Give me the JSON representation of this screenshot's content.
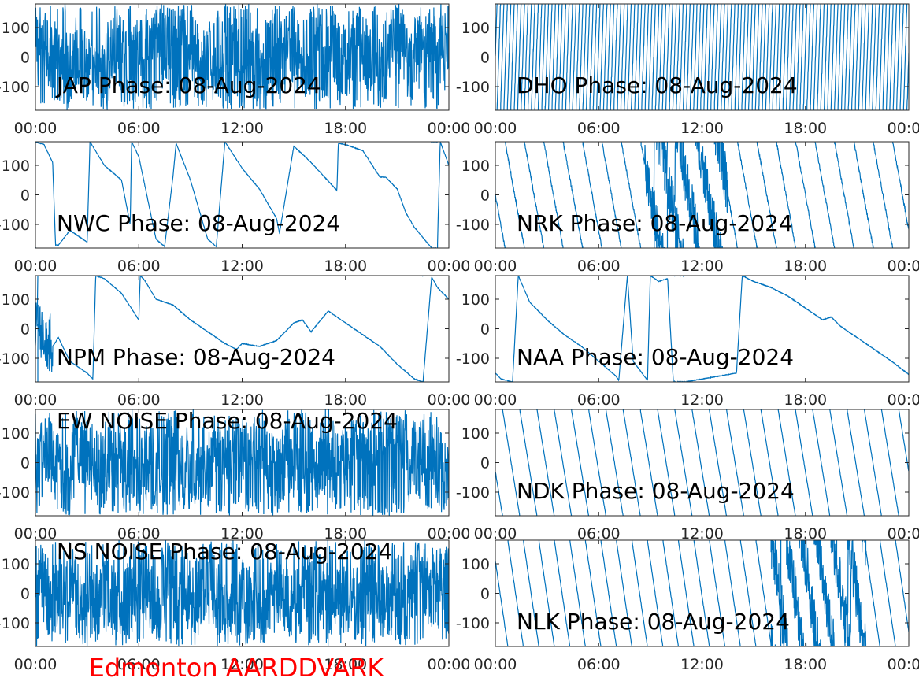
{
  "figure": {
    "footer_label": "Edmonton AARDDVARK",
    "footer_color": "#ff0000",
    "line_color": "#0072bd",
    "axes_color": "#262626",
    "background": "#ffffff"
  },
  "chart_data": [
    {
      "type": "line",
      "station": "JAP",
      "title": "JAP Phase: 08-Aug-2024",
      "xlabel": "",
      "ylabel": "",
      "xlim": [
        "00:00",
        "24:00"
      ],
      "x_ticks": [
        "00:00",
        "06:00",
        "12:00",
        "18:00",
        "00:00"
      ],
      "ylim": [
        -180,
        180
      ],
      "y_ticks": [
        100,
        0,
        -100
      ],
      "grid": false,
      "pattern": "noise",
      "trend_deg_per_hour": 0,
      "series": [
        {
          "x": [
            "00:00",
            "04:00",
            "08:00",
            "12:00",
            "16:00",
            "20:00",
            "24:00"
          ],
          "values": [
            20,
            -60,
            110,
            -140,
            60,
            -20,
            90
          ]
        }
      ]
    },
    {
      "type": "line",
      "station": "DHO",
      "title": "DHO Phase: 08-Aug-2024",
      "xlabel": "",
      "ylabel": "",
      "xlim": [
        "00:00",
        "24:00"
      ],
      "x_ticks": [
        "00:00",
        "06:00",
        "12:00",
        "18:00",
        "00:00"
      ],
      "ylim": [
        -180,
        180
      ],
      "y_ticks": [
        100,
        0,
        -100
      ],
      "grid": false,
      "pattern": "fast_sawtooth",
      "wraps_per_hour": 5,
      "series": [
        {
          "x": [
            "00:00",
            "06:00",
            "12:00",
            "18:00",
            "24:00"
          ],
          "values": [
            0,
            40,
            -20,
            30,
            10
          ]
        }
      ]
    },
    {
      "type": "line",
      "station": "NWC",
      "title": "NWC Phase: 08-Aug-2024",
      "xlabel": "",
      "ylabel": "",
      "xlim": [
        "00:00",
        "24:00"
      ],
      "x_ticks": [
        "00:00",
        "06:00",
        "12:00",
        "18:00",
        "00:00"
      ],
      "ylim": [
        -180,
        180
      ],
      "y_ticks": [
        100,
        0,
        -100
      ],
      "grid": false,
      "pattern": "wrapped",
      "trend_deg_per_hour": 0,
      "series": [
        {
          "x": [
            "00:00",
            "00:30",
            "01:00",
            "01:10",
            "01:20",
            "02:00",
            "03:00",
            "03:10",
            "04:00",
            "05:00",
            "05:30",
            "05:35",
            "06:00",
            "07:00",
            "07:30",
            "08:00",
            "08:10",
            "09:00",
            "10:00",
            "10:30",
            "11:00",
            "12:00",
            "13:00",
            "14:00",
            "14:10",
            "15:00",
            "16:00",
            "17:30",
            "17:35",
            "18:00",
            "19:00",
            "20:00",
            "20:20",
            "21:00",
            "21:30",
            "22:00",
            "23:00",
            "23:20",
            "23:30",
            "24:00"
          ],
          "values": [
            180,
            170,
            110,
            -170,
            -170,
            -120,
            -160,
            180,
            100,
            50,
            -100,
            180,
            130,
            -150,
            -175,
            70,
            175,
            50,
            -150,
            -175,
            180,
            90,
            20,
            -80,
            -130,
            165,
            110,
            15,
            175,
            170,
            150,
            60,
            60,
            20,
            -60,
            -110,
            -180,
            -180,
            180,
            100
          ]
        }
      ]
    },
    {
      "type": "line",
      "station": "NRK",
      "title": "NRK Phase: 08-Aug-2024",
      "xlabel": "",
      "ylabel": "",
      "xlim": [
        "00:00",
        "24:00"
      ],
      "x_ticks": [
        "00:00",
        "06:00",
        "12:00",
        "18:00",
        "00:00"
      ],
      "ylim": [
        -180,
        180
      ],
      "y_ticks": [
        100,
        0,
        -100
      ],
      "grid": false,
      "pattern": "wrapped",
      "trend_deg_per_hour": -320,
      "noise_deg": 12,
      "noisy_interval": [
        "08:40",
        "13:30"
      ],
      "series": [
        {
          "x": [
            "00:00",
            "24:00"
          ],
          "values": [
            0,
            0
          ]
        }
      ]
    },
    {
      "type": "line",
      "station": "NPM",
      "title": "NPM Phase: 08-Aug-2024",
      "xlabel": "",
      "ylabel": "",
      "xlim": [
        "00:00",
        "24:00"
      ],
      "x_ticks": [
        "00:00",
        "06:00",
        "12:00",
        "18:00",
        "00:00"
      ],
      "ylim": [
        -180,
        180
      ],
      "y_ticks": [
        100,
        0,
        -100
      ],
      "grid": false,
      "pattern": "wrapped",
      "trend_deg_per_hour": 0,
      "noisy_interval": [
        "00:00",
        "01:00"
      ],
      "series": [
        {
          "x": [
            "00:00",
            "01:00",
            "01:20",
            "02:00",
            "03:00",
            "03:20",
            "03:30",
            "04:00",
            "05:00",
            "06:00",
            "06:05",
            "06:20",
            "07:00",
            "08:00",
            "09:00",
            "10:00",
            "11:00",
            "11:40",
            "12:00",
            "13:00",
            "14:00",
            "15:00",
            "15:30",
            "16:00",
            "17:00",
            "18:00",
            "19:00",
            "20:00",
            "21:00",
            "22:00",
            "22:30",
            "23:00",
            "23:20",
            "24:00"
          ],
          "values": [
            20,
            -60,
            -30,
            -110,
            -150,
            -170,
            180,
            170,
            120,
            30,
            180,
            165,
            100,
            80,
            30,
            -10,
            -50,
            -70,
            -50,
            -60,
            -40,
            20,
            30,
            -10,
            60,
            20,
            -20,
            -60,
            -120,
            -170,
            -180,
            175,
            140,
            100
          ]
        }
      ]
    },
    {
      "type": "line",
      "station": "NAA",
      "title": "NAA Phase: 08-Aug-2024",
      "xlabel": "",
      "ylabel": "",
      "xlim": [
        "00:00",
        "24:00"
      ],
      "x_ticks": [
        "00:00",
        "06:00",
        "12:00",
        "18:00",
        "00:00"
      ],
      "ylim": [
        -180,
        180
      ],
      "y_ticks": [
        100,
        0,
        -100
      ],
      "grid": false,
      "pattern": "wrapped",
      "trend_deg_per_hour": 0,
      "series": [
        {
          "x": [
            "00:00",
            "00:20",
            "01:00",
            "01:20",
            "02:00",
            "03:00",
            "04:00",
            "05:00",
            "06:00",
            "07:00",
            "07:10",
            "07:40",
            "08:00",
            "08:50",
            "09:00",
            "09:30",
            "10:00",
            "10:20",
            "11:00",
            "12:00",
            "13:00",
            "14:00",
            "14:20",
            "15:00",
            "16:00",
            "17:00",
            "18:00",
            "19:00",
            "19:30",
            "20:00",
            "21:00",
            "22:00",
            "23:00",
            "24:00"
          ],
          "values": [
            -150,
            -170,
            -180,
            180,
            90,
            30,
            -20,
            -60,
            -110,
            -160,
            -175,
            180,
            -110,
            -175,
            180,
            160,
            170,
            -180,
            -180,
            -170,
            -160,
            -150,
            180,
            160,
            140,
            110,
            70,
            30,
            40,
            10,
            -30,
            -70,
            -110,
            -155
          ]
        }
      ]
    },
    {
      "type": "line",
      "station": "EW NOISE",
      "title": "EW NOISE Phase: 08-Aug-2024",
      "xlabel": "",
      "ylabel": "",
      "xlim": [
        "00:00",
        "24:00"
      ],
      "x_ticks": [
        "00:00",
        "06:00",
        "12:00",
        "18:00",
        "00:00"
      ],
      "ylim": [
        -180,
        180
      ],
      "y_ticks": [
        100,
        0,
        -100
      ],
      "grid": false,
      "pattern": "noise",
      "series": [
        {
          "x": [
            "00:00",
            "04:00",
            "08:00",
            "12:00",
            "16:00",
            "20:00",
            "24:00"
          ],
          "values": [
            -40,
            30,
            -120,
            80,
            -60,
            120,
            -20
          ]
        }
      ]
    },
    {
      "type": "line",
      "station": "NDK",
      "title": "NDK Phase: 08-Aug-2024",
      "xlabel": "",
      "ylabel": "",
      "xlim": [
        "00:00",
        "24:00"
      ],
      "x_ticks": [
        "00:00",
        "06:00",
        "12:00",
        "18:00",
        "00:00"
      ],
      "ylim": [
        -180,
        180
      ],
      "y_ticks": [
        100,
        0,
        -100
      ],
      "grid": false,
      "pattern": "wrapped",
      "trend_deg_per_hour": -360,
      "noise_deg": 3,
      "series": [
        {
          "x": [
            "00:00",
            "24:00"
          ],
          "values": [
            -30,
            -30
          ]
        }
      ]
    },
    {
      "type": "line",
      "station": "NS NOISE",
      "title": "NS NOISE Phase: 08-Aug-2024",
      "xlabel": "",
      "ylabel": "",
      "xlim": [
        "00:00",
        "24:00"
      ],
      "x_ticks": [
        "00:00",
        "06:00",
        "12:00",
        "18:00",
        "00:00"
      ],
      "ylim": [
        -180,
        180
      ],
      "y_ticks": [
        100,
        0,
        -100
      ],
      "grid": false,
      "pattern": "noise",
      "series": [
        {
          "x": [
            "00:00",
            "04:00",
            "08:00",
            "12:00",
            "16:00",
            "20:00",
            "24:00"
          ],
          "values": [
            30,
            -40,
            60,
            -90,
            40,
            -120,
            110
          ]
        }
      ]
    },
    {
      "type": "line",
      "station": "NLK",
      "title": "NLK Phase: 08-Aug-2024",
      "xlabel": "",
      "ylabel": "",
      "xlim": [
        "00:00",
        "24:00"
      ],
      "x_ticks": [
        "00:00",
        "06:00",
        "12:00",
        "18:00",
        "00:00"
      ],
      "ylim": [
        -180,
        180
      ],
      "y_ticks": [
        100,
        0,
        -100
      ],
      "grid": false,
      "pattern": "wrapped",
      "trend_deg_per_hour": -400,
      "noise_deg": 4,
      "noisy_interval": [
        "16:00",
        "21:30"
      ],
      "series": [
        {
          "x": [
            "00:00",
            "24:00"
          ],
          "values": [
            110,
            110
          ]
        }
      ]
    }
  ]
}
